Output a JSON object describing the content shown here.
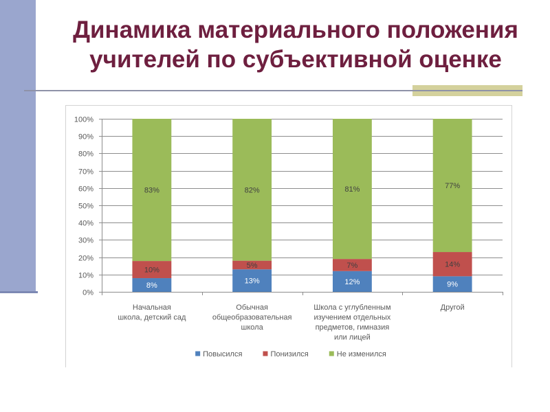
{
  "slide": {
    "title_line1": "Динамика материального положения",
    "title_line2": "учителей по субъективной оценке"
  },
  "colors": {
    "title": "#6E1F3F",
    "side_bar": "#9AA6CE",
    "accent_block": "#D4D19C"
  },
  "chart_data": {
    "type": "bar",
    "stacking": "percent",
    "title": "",
    "xlabel": "",
    "ylabel": "",
    "categories": [
      [
        "Начальная",
        "школа, детский сад"
      ],
      [
        "Обычная",
        "общеобразовательная",
        "школа"
      ],
      [
        "Школа с углубленным",
        "изучением отдельных",
        "предметов, гимназия",
        "или лицей"
      ],
      [
        "Другой"
      ]
    ],
    "series": [
      {
        "name": "Повысился",
        "color": "#4F81BD",
        "label_color": "#FFFFFF",
        "values": [
          8,
          13,
          12,
          9
        ],
        "labels": [
          "8%",
          "13%",
          "12%",
          "9%"
        ]
      },
      {
        "name": "Понизился",
        "color": "#C0504D",
        "label_color": "#404040",
        "values": [
          10,
          5,
          7,
          14
        ],
        "labels": [
          "10%",
          "5%",
          "7%",
          "14%"
        ]
      },
      {
        "name": "Не изменился",
        "color": "#9BBB59",
        "label_color": "#404040",
        "values": [
          83,
          82,
          81,
          77
        ],
        "labels": [
          "83%",
          "82%",
          "81%",
          "77%"
        ]
      }
    ],
    "ylim": [
      0,
      100
    ],
    "yticks": [
      {
        "value": 0,
        "label": "0%"
      },
      {
        "value": 10,
        "label": "10%"
      },
      {
        "value": 20,
        "label": "20%"
      },
      {
        "value": 30,
        "label": "30%"
      },
      {
        "value": 40,
        "label": "40%"
      },
      {
        "value": 50,
        "label": "50%"
      },
      {
        "value": 60,
        "label": "60%"
      },
      {
        "value": 70,
        "label": "70%"
      },
      {
        "value": 80,
        "label": "80%"
      },
      {
        "value": 90,
        "label": "90%"
      },
      {
        "value": 100,
        "label": "100%"
      }
    ],
    "grid": true,
    "legend": "bottom"
  }
}
